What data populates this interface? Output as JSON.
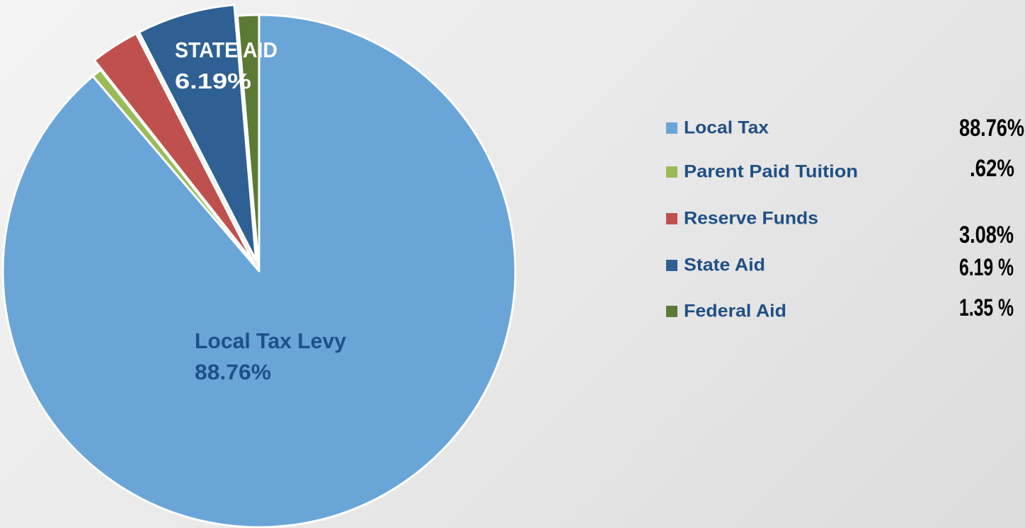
{
  "chart_data": {
    "type": "pie",
    "categories": [
      "Local Tax",
      "Parent Paid Tuition",
      "Reserve Funds",
      "State Aid",
      "Federal Aid"
    ],
    "values": [
      88.76,
      0.62,
      3.08,
      6.19,
      1.35
    ],
    "value_labels": [
      "88.76%",
      ".62%",
      "3.08%",
      "6.19 %",
      "1.35 %"
    ],
    "colors": [
      "#6aa5d8",
      "#9bbb59",
      "#c0504d",
      "#2e6093",
      "#5b7a34"
    ],
    "slice_labels": [
      "Local Tax Levy",
      null,
      null,
      "STATE AID",
      null
    ],
    "slice_value_labels": [
      "88.76%",
      null,
      null,
      "6.19%",
      null
    ],
    "exploded": [
      false,
      false,
      true,
      true,
      false
    ],
    "legend": "right"
  }
}
